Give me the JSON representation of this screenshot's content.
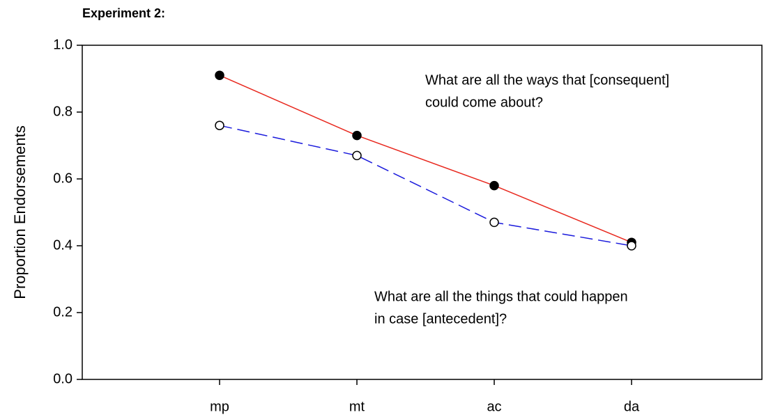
{
  "chart_data": {
    "type": "line",
    "title": "Experiment 2:",
    "y_label": "Proportion Endorsements",
    "categories": [
      "mp",
      "mt",
      "ac",
      "da"
    ],
    "series": [
      {
        "color": "#e8281e",
        "marker": "filled",
        "line_style": "solid",
        "values": [
          0.91,
          0.73,
          0.58,
          0.41
        ]
      },
      {
        "color": "#1a1adc",
        "marker": "open",
        "line_style": "dashed",
        "values": [
          0.76,
          0.67,
          0.47,
          0.4
        ]
      }
    ],
    "ylim": [
      0,
      1
    ],
    "yticks": [
      {
        "value": 0,
        "label": "0.0"
      },
      0.2,
      0.4,
      0.6,
      0.8,
      {
        "value": 1,
        "label": "1.0"
      }
    ],
    "annotations": [
      {
        "lines": [
          "What are all the ways that [consequent]",
          "could come about?"
        ]
      },
      {
        "lines": [
          "What are all the things that could happen",
          "in case [antecedent]?"
        ]
      }
    ],
    "grid": false
  }
}
